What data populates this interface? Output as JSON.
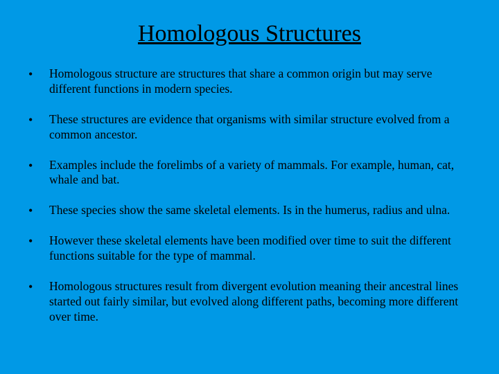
{
  "slide": {
    "background_color": "#0099e6",
    "text_color": "#000000",
    "font_family": "Times New Roman",
    "title": "Homologous Structures",
    "title_fontsize": 34,
    "title_underline": true,
    "body_fontsize": 17.5,
    "bullets": [
      " Homologous structure are structures that share a common origin but may serve different functions in modern species.",
      "These structures are evidence that organisms with similar structure evolved from a common ancestor.",
      "Examples include the forelimbs of a variety of mammals. For example, human, cat, whale and bat.",
      "These species show the same skeletal elements. Is in the humerus, radius and ulna.",
      "However these skeletal elements have been modified over time to suit the different functions suitable for the type of mammal.",
      " Homologous structures result from divergent evolution meaning their ancestral lines started out fairly similar, but evolved along different paths, becoming more different over time."
    ]
  }
}
